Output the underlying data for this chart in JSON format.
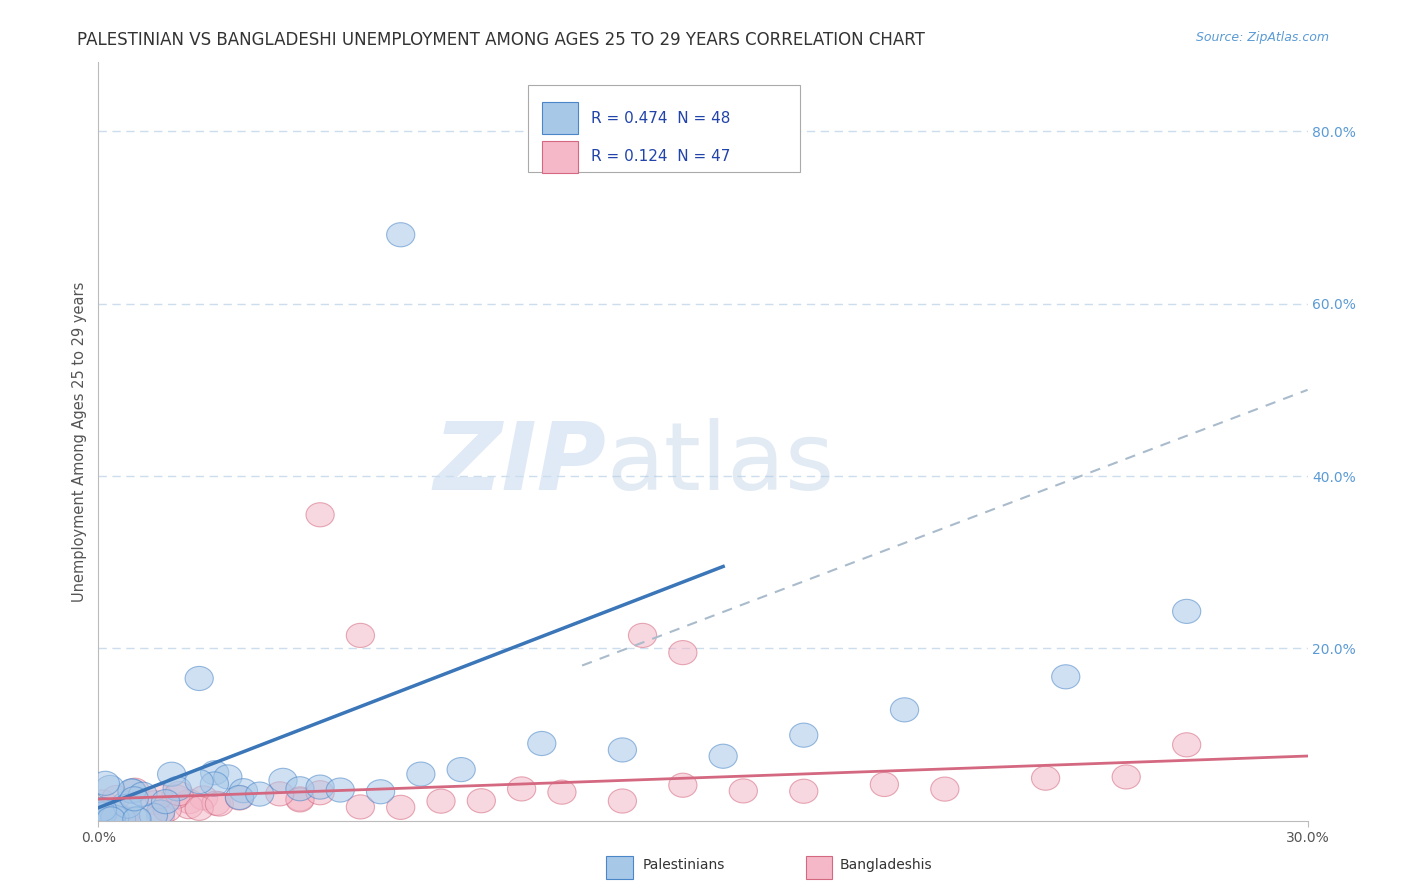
{
  "title": "PALESTINIAN VS BANGLADESHI UNEMPLOYMENT AMONG AGES 25 TO 29 YEARS CORRELATION CHART",
  "source": "Source: ZipAtlas.com",
  "ylabel": "Unemployment Among Ages 25 to 29 years",
  "legend_1_r": "0.474",
  "legend_1_n": "48",
  "legend_2_r": "0.124",
  "legend_2_n": "47",
  "legend_label_1": "Palestinians",
  "legend_label_2": "Bangladeshis",
  "color_blue_fill": "#a8c8e8",
  "color_blue_edge": "#4a86c8",
  "color_pink_fill": "#f4b8c8",
  "color_pink_edge": "#d46880",
  "color_blue_line": "#3a76b8",
  "color_pink_line": "#d46880",
  "color_dashed_line": "#aabbcc",
  "background_color": "#ffffff",
  "grid_color": "#ccddee",
  "xlim": [
    0.0,
    0.3
  ],
  "ylim": [
    0.0,
    0.88
  ],
  "watermark_zip": "ZIP",
  "watermark_atlas": "atlas",
  "title_fontsize": 12,
  "axis_fontsize": 10.5,
  "tick_fontsize": 10,
  "source_color": "#5b9bd5",
  "legend_text_color": "#2244aa",
  "legend_text_color2": "#2244aa",
  "ytick_color": "#5b9bd5",
  "axis_label_color": "#555555",
  "xtick_color": "#555555"
}
